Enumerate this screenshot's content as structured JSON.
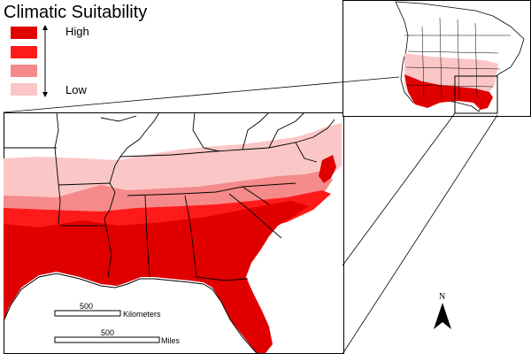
{
  "legend": {
    "title": "Climatic Suitability",
    "high_label": "High",
    "low_label": "Low",
    "classes": [
      {
        "color": "#e00000"
      },
      {
        "color": "#ff1a1a"
      },
      {
        "color": "#f58a8a"
      },
      {
        "color": "#fbc6c6"
      }
    ]
  },
  "scalebars": {
    "km": {
      "value": "500",
      "unit": "Kilometers"
    },
    "mi": {
      "value": "500",
      "unit": "Miles"
    }
  },
  "north_arrow": {
    "label": "N"
  },
  "colors": {
    "high": "#e00000",
    "mid_high": "#ff1a1a",
    "mid_low": "#f58a8a",
    "low": "#fbc6c6",
    "boundary": "#000000",
    "frame": "#000000"
  }
}
